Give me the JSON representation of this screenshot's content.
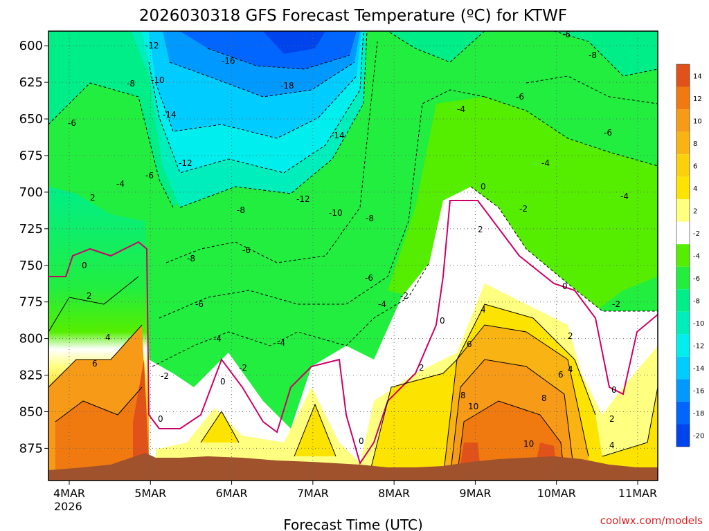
{
  "chart_data": {
    "type": "heatmap",
    "title": "2026030318 GFS Forecast Temperature (ºC) for KTWF",
    "xlabel": "Forecast Time (UTC)",
    "ylabel": "",
    "x_ticks": [
      "4MAR",
      "5MAR",
      "6MAR",
      "7MAR",
      "8MAR",
      "9MAR",
      "10MAR",
      "11MAR"
    ],
    "x_tick_sublabel": "2026",
    "y_ticks": [
      600,
      625,
      650,
      675,
      700,
      725,
      750,
      775,
      800,
      825,
      850,
      875
    ],
    "ylim": [
      897,
      590
    ],
    "y_scale": "pressure (hPa), inverted",
    "colorbar": {
      "levels": [
        14,
        12,
        10,
        8,
        6,
        4,
        2,
        -2,
        -4,
        -6,
        -8,
        -10,
        -12,
        -14,
        -16,
        -18,
        -20
      ],
      "colors": [
        "#e0521a",
        "#f07a10",
        "#f79a17",
        "#f9b414",
        "#fbd00c",
        "#fde300",
        "#ffff80",
        "#ffffff",
        "#55ee00",
        "#22ee40",
        "#00ee88",
        "#00eebb",
        "#00eeee",
        "#00ccff",
        "#0099ff",
        "#0066ff",
        "#0044ee"
      ]
    },
    "contour_interval": 2,
    "freezing_line_color": "#cc0066",
    "terrain_color": "#a0522d",
    "grid": true
  },
  "credit": "coolwx.com/models"
}
